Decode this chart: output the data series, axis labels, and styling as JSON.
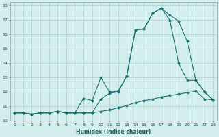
{
  "xlabel": "Humidex (Indice chaleur)",
  "bg_color": "#d4eded",
  "grid_color": "#aacece",
  "line_color": "#1a7070",
  "xlim": [
    -0.5,
    23.4
  ],
  "ylim": [
    10,
    18.2
  ],
  "xticks": [
    0,
    1,
    2,
    3,
    4,
    5,
    6,
    7,
    8,
    9,
    10,
    11,
    12,
    13,
    14,
    15,
    16,
    17,
    18,
    19,
    20,
    21,
    22,
    23
  ],
  "yticks": [
    10,
    11,
    12,
    13,
    14,
    15,
    16,
    17,
    18
  ],
  "line1_x": [
    0,
    1,
    2,
    3,
    4,
    5,
    6,
    7,
    8,
    9,
    10,
    11,
    12,
    13,
    14,
    15,
    16,
    17,
    18,
    19,
    20,
    21,
    22,
    23
  ],
  "line1_y": [
    10.55,
    10.55,
    10.45,
    10.55,
    10.55,
    10.65,
    10.55,
    10.55,
    10.55,
    10.55,
    11.5,
    11.9,
    12.0,
    13.1,
    16.3,
    16.35,
    17.45,
    17.8,
    17.3,
    16.9,
    15.5,
    12.8,
    12.0,
    11.45
  ],
  "line2_x": [
    0,
    1,
    2,
    3,
    4,
    5,
    6,
    7,
    8,
    9,
    10,
    11,
    12,
    13,
    14,
    15,
    16,
    17,
    18,
    19,
    20,
    21,
    22,
    23
  ],
  "line2_y": [
    10.55,
    10.55,
    10.45,
    10.55,
    10.55,
    10.65,
    10.55,
    10.55,
    10.55,
    10.55,
    10.65,
    10.75,
    10.9,
    11.05,
    11.25,
    11.4,
    11.5,
    11.65,
    11.75,
    11.85,
    11.95,
    12.05,
    11.5,
    11.45
  ],
  "line3_x": [
    0,
    1,
    2,
    3,
    4,
    5,
    6,
    7,
    8,
    9,
    10,
    11,
    12,
    13,
    14,
    15,
    16,
    17,
    18,
    19,
    20,
    21,
    22,
    23
  ],
  "line3_y": [
    10.55,
    10.55,
    10.45,
    10.55,
    10.55,
    10.65,
    10.55,
    10.55,
    11.55,
    11.4,
    13.0,
    12.0,
    12.05,
    13.1,
    16.3,
    16.35,
    17.45,
    17.8,
    16.95,
    14.0,
    12.8,
    12.8,
    12.0,
    11.45
  ]
}
